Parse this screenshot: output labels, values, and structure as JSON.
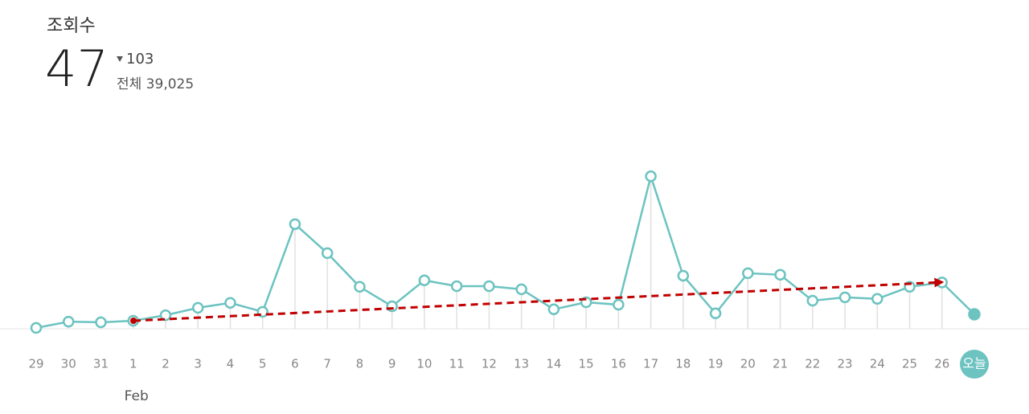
{
  "header": {
    "title": "조회수",
    "count": 47,
    "change": 103,
    "total": "전체 39,025"
  },
  "chart_data": {
    "type": "line",
    "color": "#6cc3c0",
    "categories": [
      "29",
      "30",
      "31",
      "1",
      "2",
      "3",
      "4",
      "5",
      "6",
      "7",
      "8",
      "9",
      "10",
      "11",
      "12",
      "13",
      "14",
      "15",
      "16",
      "17",
      "18",
      "19",
      "20",
      "21",
      "22",
      "23",
      "24",
      "25",
      "26",
      "오늘"
    ],
    "x_sublabels": [
      null,
      null,
      null,
      "Feb",
      null,
      null,
      null,
      null,
      null,
      null,
      null,
      null,
      null,
      null,
      null,
      null,
      null,
      null,
      null,
      null,
      null,
      null,
      null,
      null,
      null,
      null,
      null,
      null,
      null,
      null
    ],
    "values": [
      3,
      23,
      21,
      26,
      44,
      68,
      84,
      55,
      339,
      245,
      136,
      73,
      157,
      138,
      138,
      128,
      63,
      86,
      78,
      494,
      172,
      50,
      180,
      175,
      91,
      102,
      97,
      136,
      150,
      47
    ],
    "ylim": [
      0,
      500
    ]
  }
}
